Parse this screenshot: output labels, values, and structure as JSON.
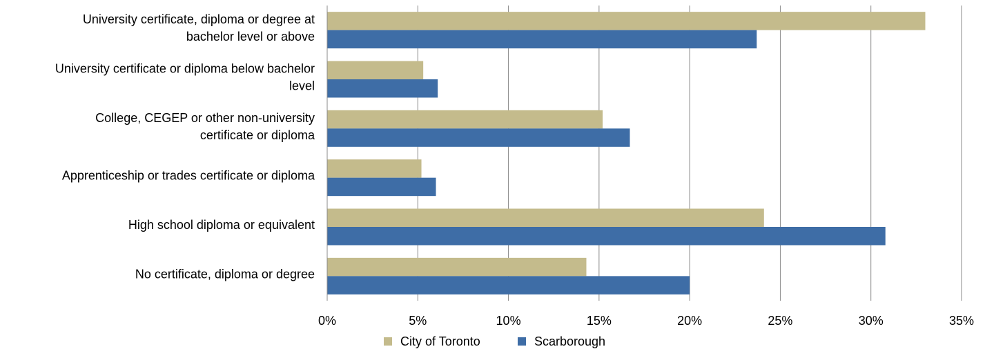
{
  "chart_data": {
    "type": "hbar",
    "categories": [
      "University certificate, diploma or degree at\nbachelor level or above",
      "University certificate or diploma below bachelor\nlevel",
      "College, CEGEP or other non-university\ncertificate or diploma",
      "Apprenticeship or trades certificate or diploma",
      "High school diploma or equivalent",
      "No certificate, diploma or degree"
    ],
    "series": [
      {
        "name": "City of Toronto",
        "color": "#c4bb8c",
        "values": [
          33.0,
          5.3,
          15.2,
          5.2,
          24.1,
          14.3
        ]
      },
      {
        "name": "Scarborough",
        "color": "#3e6da6",
        "values": [
          23.7,
          6.1,
          16.7,
          6.0,
          30.8,
          20.0
        ]
      }
    ],
    "xlim": [
      0,
      35
    ],
    "xticks": [
      {
        "value": 0,
        "label": "0%"
      },
      {
        "value": 5,
        "label": "5%"
      },
      {
        "value": 10,
        "label": "10%"
      },
      {
        "value": 15,
        "label": "15%"
      },
      {
        "value": 20,
        "label": "20%"
      },
      {
        "value": 25,
        "label": "25%"
      },
      {
        "value": 30,
        "label": "30%"
      },
      {
        "value": 35,
        "label": "35%"
      }
    ],
    "grid": true,
    "legend": "bottom"
  }
}
